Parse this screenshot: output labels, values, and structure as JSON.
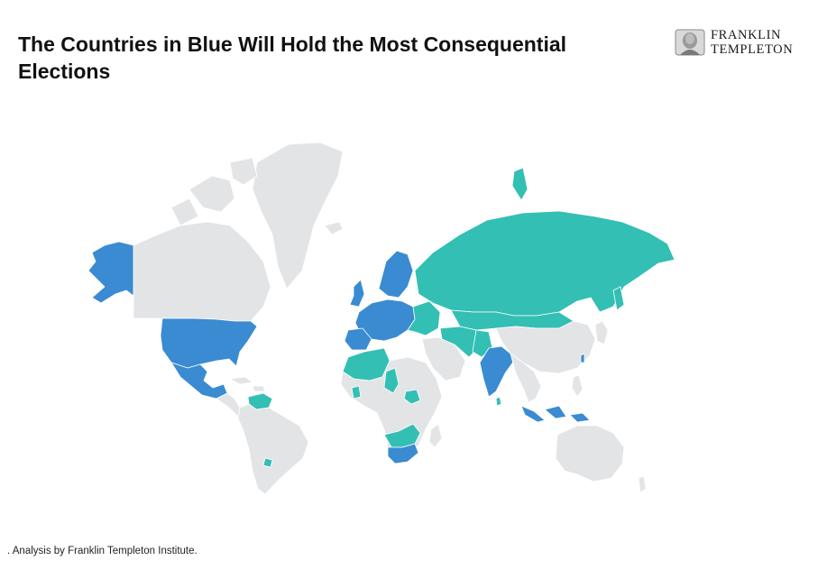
{
  "title": "The Countries in Blue Will Hold the Most Consequential Elections",
  "logo": {
    "line1": "FRANKLIN",
    "line2": "TEMPLETON"
  },
  "source": ". Analysis by Franklin Templeton Institute.",
  "colors": {
    "consequential": "#3a8bd1",
    "other_election": "#33bfb4",
    "no_election": "#e3e4e6",
    "border": "#ffffff"
  },
  "icons": {
    "logo_seal": "portrait-seal-icon"
  }
}
